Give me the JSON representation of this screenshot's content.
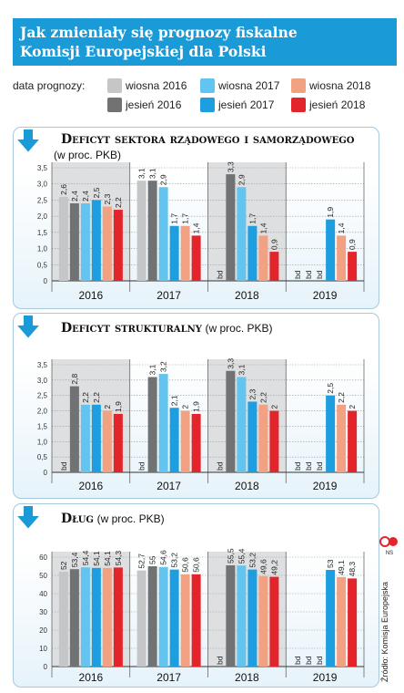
{
  "title": {
    "line1": "Jak zmieniały się prognozy fiskalne",
    "line2": "Komisji Europejskiej dla Polski"
  },
  "legend": {
    "label": "data prognozy:",
    "items": [
      {
        "name": "wiosna 2016",
        "color": "#c4c6c8"
      },
      {
        "name": "wiosna 2017",
        "color": "#63c4ef"
      },
      {
        "name": "wiosna 2018",
        "color": "#f2a183"
      },
      {
        "name": "jesień 2016",
        "color": "#707274"
      },
      {
        "name": "jesień 2017",
        "color": "#1d9ee0"
      },
      {
        "name": "jesień 2018",
        "color": "#e3242b"
      }
    ]
  },
  "colors": {
    "header_blue": "#1a9ad6",
    "shade": "#dedfe0"
  },
  "icons": [
    "down-arrow-icon",
    "ns-logo-icon"
  ],
  "source": "Źródło: Komisja Europejska",
  "logo_text": "NS",
  "chart_data": [
    {
      "type": "bar",
      "title_bold": "Deficyt sektora rządowego i samorządowego",
      "title_normal": "(w proc. PKB)",
      "categories": [
        "2016",
        "2017",
        "2018",
        "2019"
      ],
      "series_order": [
        "wiosna 2016",
        "jesień 2016",
        "wiosna 2017",
        "jesień 2017",
        "wiosna 2018",
        "jesień 2018"
      ],
      "values": [
        [
          "2,6",
          "2,4",
          "2,4",
          "2,5",
          "2,3",
          "2,2"
        ],
        [
          "3,1",
          "3,1",
          "2,9",
          "1,7",
          "1,7",
          "1,4"
        ],
        [
          "bd",
          "3,3",
          "2,9",
          "1,7",
          "1,4",
          "0,9"
        ],
        [
          "bd",
          "bd",
          "bd",
          "1,9",
          "1,4",
          "0,9"
        ]
      ],
      "ylim": [
        0,
        3.5
      ],
      "yticks": [
        "0",
        "0,5",
        "1,0",
        "1,5",
        "2,0",
        "2,5",
        "3,0",
        "3,5"
      ],
      "grid": true,
      "shaded_categories": [
        "2016",
        "2018"
      ]
    },
    {
      "type": "bar",
      "title_bold": "Deficyt strukturalny",
      "title_normal": "(w proc. PKB)",
      "categories": [
        "2016",
        "2017",
        "2018",
        "2019"
      ],
      "series_order": [
        "wiosna 2016",
        "jesień 2016",
        "wiosna 2017",
        "jesień 2017",
        "wiosna 2018",
        "jesień 2018"
      ],
      "values": [
        [
          "bd",
          "2,8",
          "2,2",
          "2,2",
          "2",
          "1,9"
        ],
        [
          "bd",
          "3,1",
          "3,2",
          "2,1",
          "2",
          "1,9"
        ],
        [
          "bd",
          "3,3",
          "3,1",
          "2,3",
          "2,2",
          "2"
        ],
        [
          "bd",
          "bd",
          "bd",
          "2,5",
          "2,2",
          "2"
        ]
      ],
      "ylim": [
        0,
        3.5
      ],
      "yticks": [
        "0",
        "0,5",
        "1,0",
        "1,5",
        "2,0",
        "2,5",
        "3,0",
        "3,5"
      ],
      "grid": true,
      "shaded_categories": [
        "2016",
        "2018"
      ]
    },
    {
      "type": "bar",
      "title_bold": "Dług",
      "title_normal": "(w proc. PKB)",
      "categories": [
        "2016",
        "2017",
        "2018",
        "2019"
      ],
      "series_order": [
        "wiosna 2016",
        "jesień 2016",
        "wiosna 2017",
        "jesień 2017",
        "wiosna 2018",
        "jesień 2018"
      ],
      "values": [
        [
          "52",
          "53,4",
          "54,4",
          "54,1",
          "54,1",
          "54,3"
        ],
        [
          "52,7",
          "55",
          "54,6",
          "53,2",
          "50,6",
          "50,6"
        ],
        [
          "bd",
          "55,5",
          "55,4",
          "53,2",
          "49,6",
          "49,2"
        ],
        [
          "bd",
          "bd",
          "bd",
          "53",
          "49,1",
          "48,3"
        ]
      ],
      "ylim": [
        0,
        60
      ],
      "yticks": [
        "0",
        "10",
        "20",
        "30",
        "40",
        "50",
        "60"
      ],
      "grid": true,
      "shaded_categories": [
        "2016",
        "2018"
      ]
    }
  ]
}
